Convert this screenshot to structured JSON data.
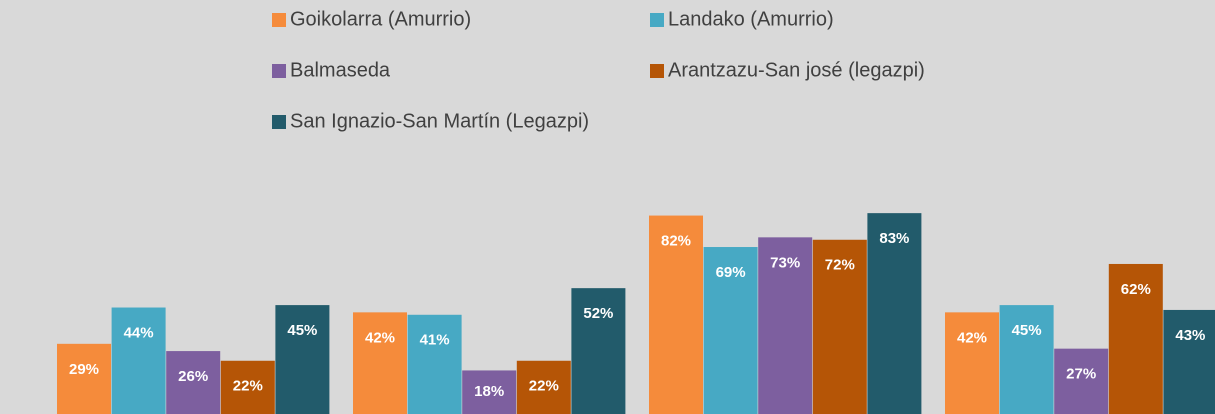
{
  "chart_data": {
    "type": "bar",
    "categories": [
      null,
      null,
      null,
      null
    ],
    "ylim": [
      0,
      100
    ],
    "series": [
      {
        "name": "Goikolarra (Amurrio)",
        "color": "#f58b3b",
        "values": [
          29,
          42,
          82,
          42
        ],
        "value_labels": [
          "29%",
          "42%",
          "82%",
          "42%"
        ]
      },
      {
        "name": "Landako (Amurrio)",
        "color": "#47a9c4",
        "values": [
          44,
          41,
          69,
          45
        ],
        "value_labels": [
          "44%",
          "41%",
          "69%",
          "45%"
        ]
      },
      {
        "name": "Balmaseda",
        "color": "#7d5f9f",
        "values": [
          26,
          18,
          73,
          27
        ],
        "value_labels": [
          "26%",
          "18%",
          "73%",
          "27%"
        ]
      },
      {
        "name": "Arantzazu-San josé (legazpi)",
        "color": "#b55506",
        "values": [
          22,
          22,
          72,
          62
        ],
        "value_labels": [
          "22%",
          "22%",
          "72%",
          "62%"
        ]
      },
      {
        "name": "San Ignazio-San Martín (Legazpi)",
        "color": "#225b6b",
        "values": [
          45,
          52,
          83,
          43
        ],
        "value_labels": [
          "45%",
          "52%",
          "83%",
          "43%"
        ]
      }
    ]
  }
}
